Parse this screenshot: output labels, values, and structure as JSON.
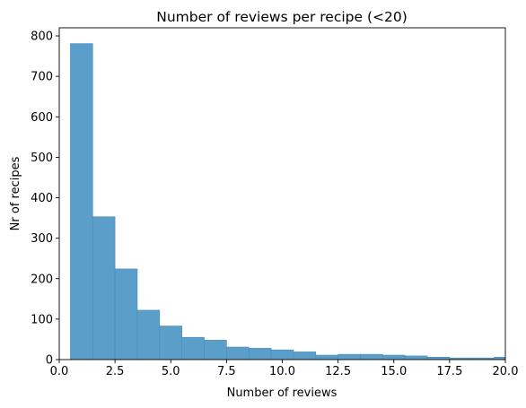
{
  "chart_data": {
    "type": "bar",
    "subtype": "histogram",
    "title": "Number of reviews per recipe (<20)",
    "xlabel": "Number of reviews",
    "ylabel": "Nr of recipes",
    "xlim": [
      0,
      20
    ],
    "ylim": [
      0,
      820
    ],
    "bin_width": 1,
    "x_ticks": [
      0,
      2.5,
      5,
      7.5,
      10,
      12.5,
      15,
      17.5,
      20
    ],
    "x_tick_labels": [
      "0.0",
      "2.5",
      "5.0",
      "7.5",
      "10.0",
      "12.5",
      "15.0",
      "17.5",
      "20.0"
    ],
    "y_ticks": [
      0,
      100,
      200,
      300,
      400,
      500,
      600,
      700,
      800
    ],
    "y_tick_labels": [
      "0",
      "100",
      "200",
      "300",
      "400",
      "500",
      "600",
      "700",
      "800"
    ],
    "bins": [
      {
        "start": 0.5,
        "end": 1.5,
        "value": 781
      },
      {
        "start": 1.5,
        "end": 2.5,
        "value": 353
      },
      {
        "start": 2.5,
        "end": 3.5,
        "value": 224
      },
      {
        "start": 3.5,
        "end": 4.5,
        "value": 122
      },
      {
        "start": 4.5,
        "end": 5.5,
        "value": 83
      },
      {
        "start": 5.5,
        "end": 6.5,
        "value": 55
      },
      {
        "start": 6.5,
        "end": 7.5,
        "value": 48
      },
      {
        "start": 7.5,
        "end": 8.5,
        "value": 31
      },
      {
        "start": 8.5,
        "end": 9.5,
        "value": 28
      },
      {
        "start": 9.5,
        "end": 10.5,
        "value": 24
      },
      {
        "start": 10.5,
        "end": 11.5,
        "value": 19
      },
      {
        "start": 11.5,
        "end": 12.5,
        "value": 11
      },
      {
        "start": 12.5,
        "end": 13.5,
        "value": 13
      },
      {
        "start": 13.5,
        "end": 14.5,
        "value": 13
      },
      {
        "start": 14.5,
        "end": 15.5,
        "value": 11
      },
      {
        "start": 15.5,
        "end": 16.5,
        "value": 9
      },
      {
        "start": 16.5,
        "end": 17.5,
        "value": 6
      },
      {
        "start": 17.5,
        "end": 18.5,
        "value": 4
      },
      {
        "start": 18.5,
        "end": 19.5,
        "value": 4
      },
      {
        "start": 19.5,
        "end": 20.5,
        "value": 6
      }
    ],
    "grid": false,
    "legend": "none",
    "colors": {
      "bar_fill": "#5b9ec9",
      "bar_edge": "#4a8cba",
      "axis": "#000000"
    }
  }
}
